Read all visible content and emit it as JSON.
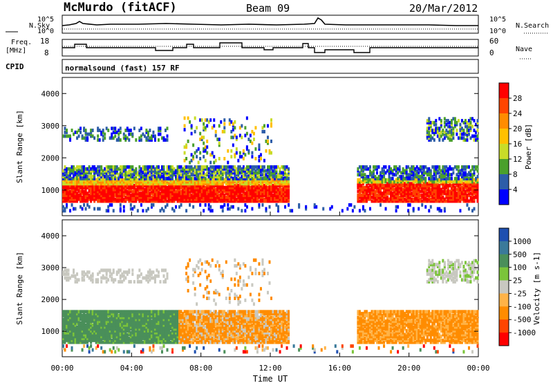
{
  "header": {
    "station": "McMurdo (fitACF)",
    "beam": "Beam 09",
    "date": "20/Mar/2012"
  },
  "nsky_panel": {
    "left_label": "N.Sky",
    "right_label": "N.Search",
    "left_ticks": [
      "10^5",
      "10^0"
    ],
    "right_ticks": [
      "10^5",
      "10^0"
    ]
  },
  "freq_panel": {
    "left_label_1": "Freq.",
    "left_label_2": "[MHz]",
    "right_label": "Nave",
    "left_ticks": [
      "18",
      "8"
    ],
    "right_ticks": [
      "60",
      "0"
    ]
  },
  "cpid_panel": {
    "label": "CPID",
    "text": "normalsound (fast) 157 RF"
  },
  "chart_data": [
    {
      "type": "heatmap",
      "quantity": "power",
      "ylabel": "Slant Range [km]",
      "yticks": [
        "4000",
        "3000",
        "2000",
        "1000"
      ],
      "ylim": [
        200,
        4500
      ],
      "colorbar": {
        "label": "Power [dB]",
        "ticks": [
          "28",
          "24",
          "20",
          "16",
          "12",
          "8",
          "4"
        ],
        "colors": [
          "#ff0000",
          "#ff4500",
          "#ff8c00",
          "#ffc000",
          "#c8dc28",
          "#4aa02c",
          "#2d5da8",
          "#0000ff"
        ]
      }
    },
    {
      "type": "heatmap",
      "quantity": "velocity",
      "ylabel": "Slant Range [km]",
      "yticks": [
        "4000",
        "3000",
        "2000",
        "1000"
      ],
      "ylim": [
        200,
        4500
      ],
      "xlabel": "Time UT",
      "xticks": [
        "00:00",
        "04:00",
        "08:00",
        "12:00",
        "16:00",
        "20:00",
        "00:00"
      ],
      "colorbar": {
        "label": "Velocity [m s-1]",
        "ticks": [
          "1000",
          "500",
          "100",
          "25",
          "-25",
          "-100",
          "-500",
          "-1000"
        ],
        "colors": [
          "#1e4fb0",
          "#3a7a9a",
          "#4a8f5a",
          "#7bc43a",
          "#c8c8c0",
          "#ffb347",
          "#ff8c00",
          "#ff4500",
          "#ff0000"
        ]
      }
    }
  ]
}
